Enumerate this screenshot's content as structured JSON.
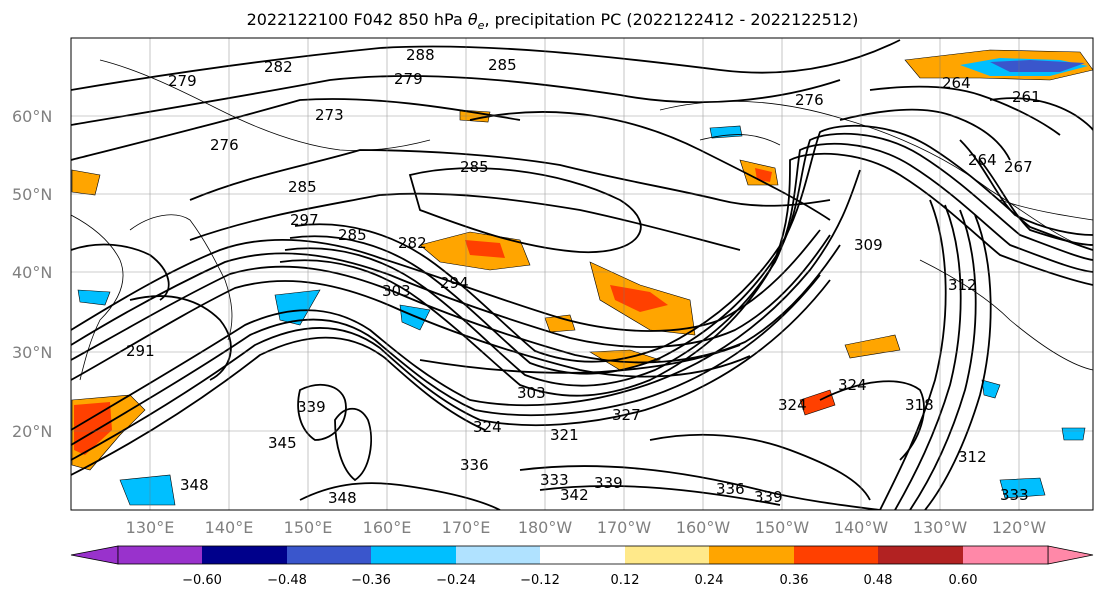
{
  "title": {
    "prefix": "2022122100 F042 850 hPa ",
    "theta_symbol": "θ",
    "theta_sub": "e",
    "suffix": ", precipitation PC (2022122412 - 2022122512)"
  },
  "map": {
    "lon_labels": [
      "130°E",
      "140°E",
      "150°E",
      "160°E",
      "170°E",
      "180°W",
      "170°W",
      "160°W",
      "150°W",
      "140°W",
      "130°W",
      "120°W"
    ],
    "lat_labels": [
      "60°N",
      "50°N",
      "40°N",
      "30°N",
      "20°N"
    ],
    "contour_labels": [
      "288",
      "282",
      "279",
      "285",
      "279",
      "276",
      "276",
      "273",
      "285",
      "285",
      "282",
      "294",
      "303",
      "285",
      "297",
      "291",
      "309",
      "312",
      "264",
      "261",
      "264",
      "267",
      "303",
      "327",
      "324",
      "321",
      "339",
      "345",
      "348",
      "348",
      "336",
      "333",
      "342",
      "339",
      "336",
      "339",
      "324",
      "324",
      "333",
      "318",
      "312"
    ]
  },
  "colorbar": {
    "colors": [
      "#9932CC",
      "#00008B",
      "#3A56CC",
      "#00BFFF",
      "#B0E2FF",
      "#FFFFFF",
      "#FFE98A",
      "#FFA500",
      "#FF4000",
      "#B22222",
      "#FF88A8",
      "#FF88A8"
    ],
    "ticks": [
      "−0.60",
      "−0.48",
      "−0.36",
      "−0.24",
      "−0.12",
      "0.12",
      "0.24",
      "0.36",
      "0.48",
      "0.60"
    ]
  }
}
